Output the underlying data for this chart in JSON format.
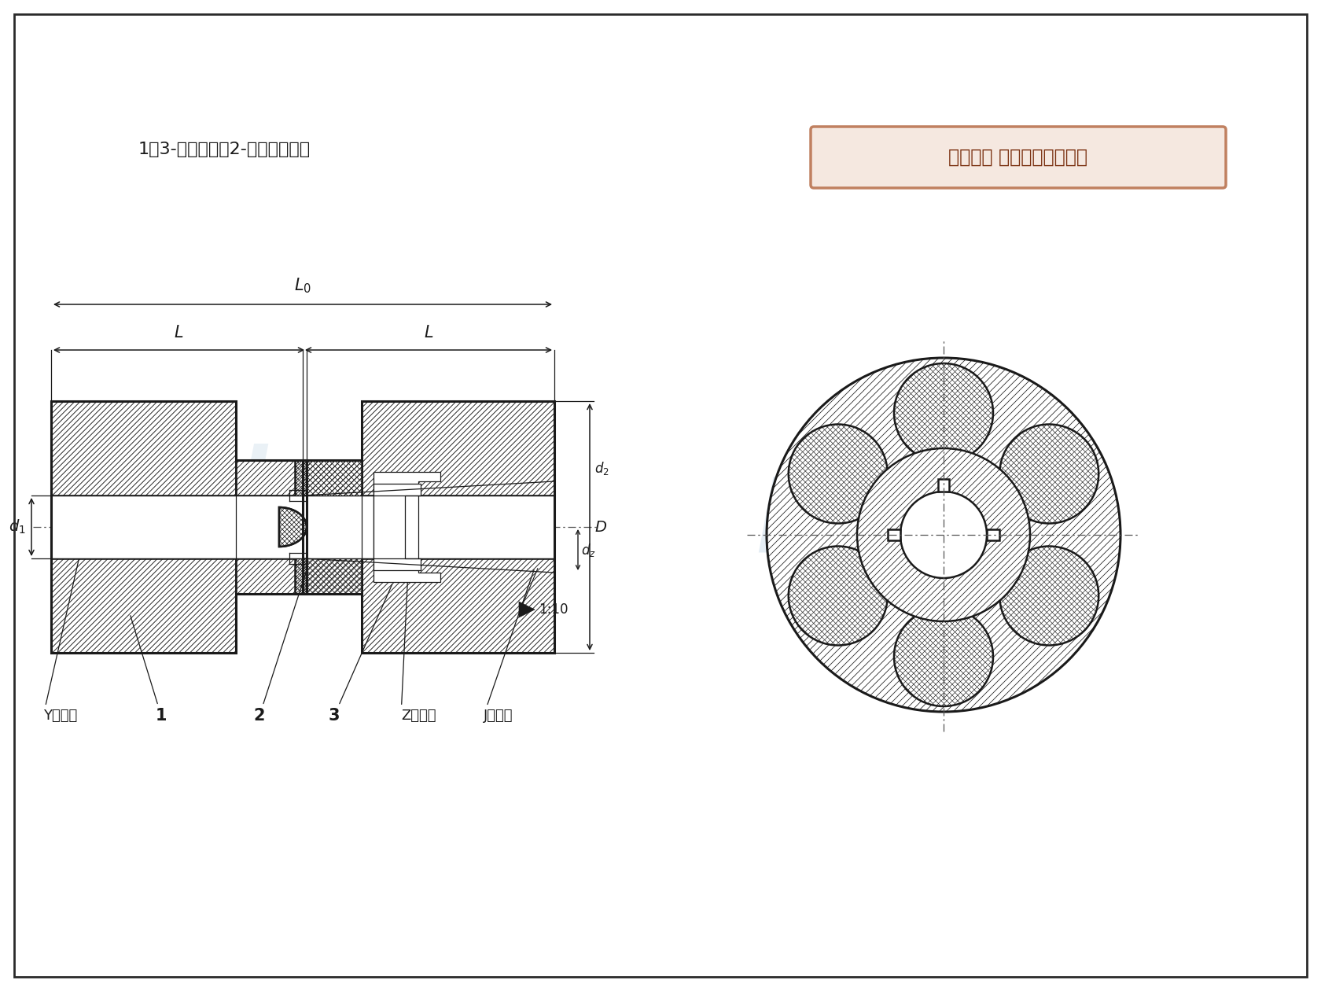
{
  "bg_color": "#ffffff",
  "line_color": "#1a1a1a",
  "caption": "1、3-半联轴器；2-梅花形弹性件",
  "copyright_text": "版权所有 侵权必被严厉追究",
  "copyright_bg": "#f5e8e0",
  "copyright_border": "#c08060",
  "watermark_color": "#c8d8e8",
  "label_Y": "Y型轴孔",
  "label_Z": "Z型轴孔",
  "label_J": "J型轴孔",
  "label_1": "1",
  "label_2": "2",
  "label_3": "3",
  "label_taper": "1:10",
  "dim_d1": "d₁",
  "dim_dz": "d₂",
  "dim_d2": "d₂",
  "dim_D": "D",
  "dim_L": "L",
  "dim_L0": "L₀"
}
